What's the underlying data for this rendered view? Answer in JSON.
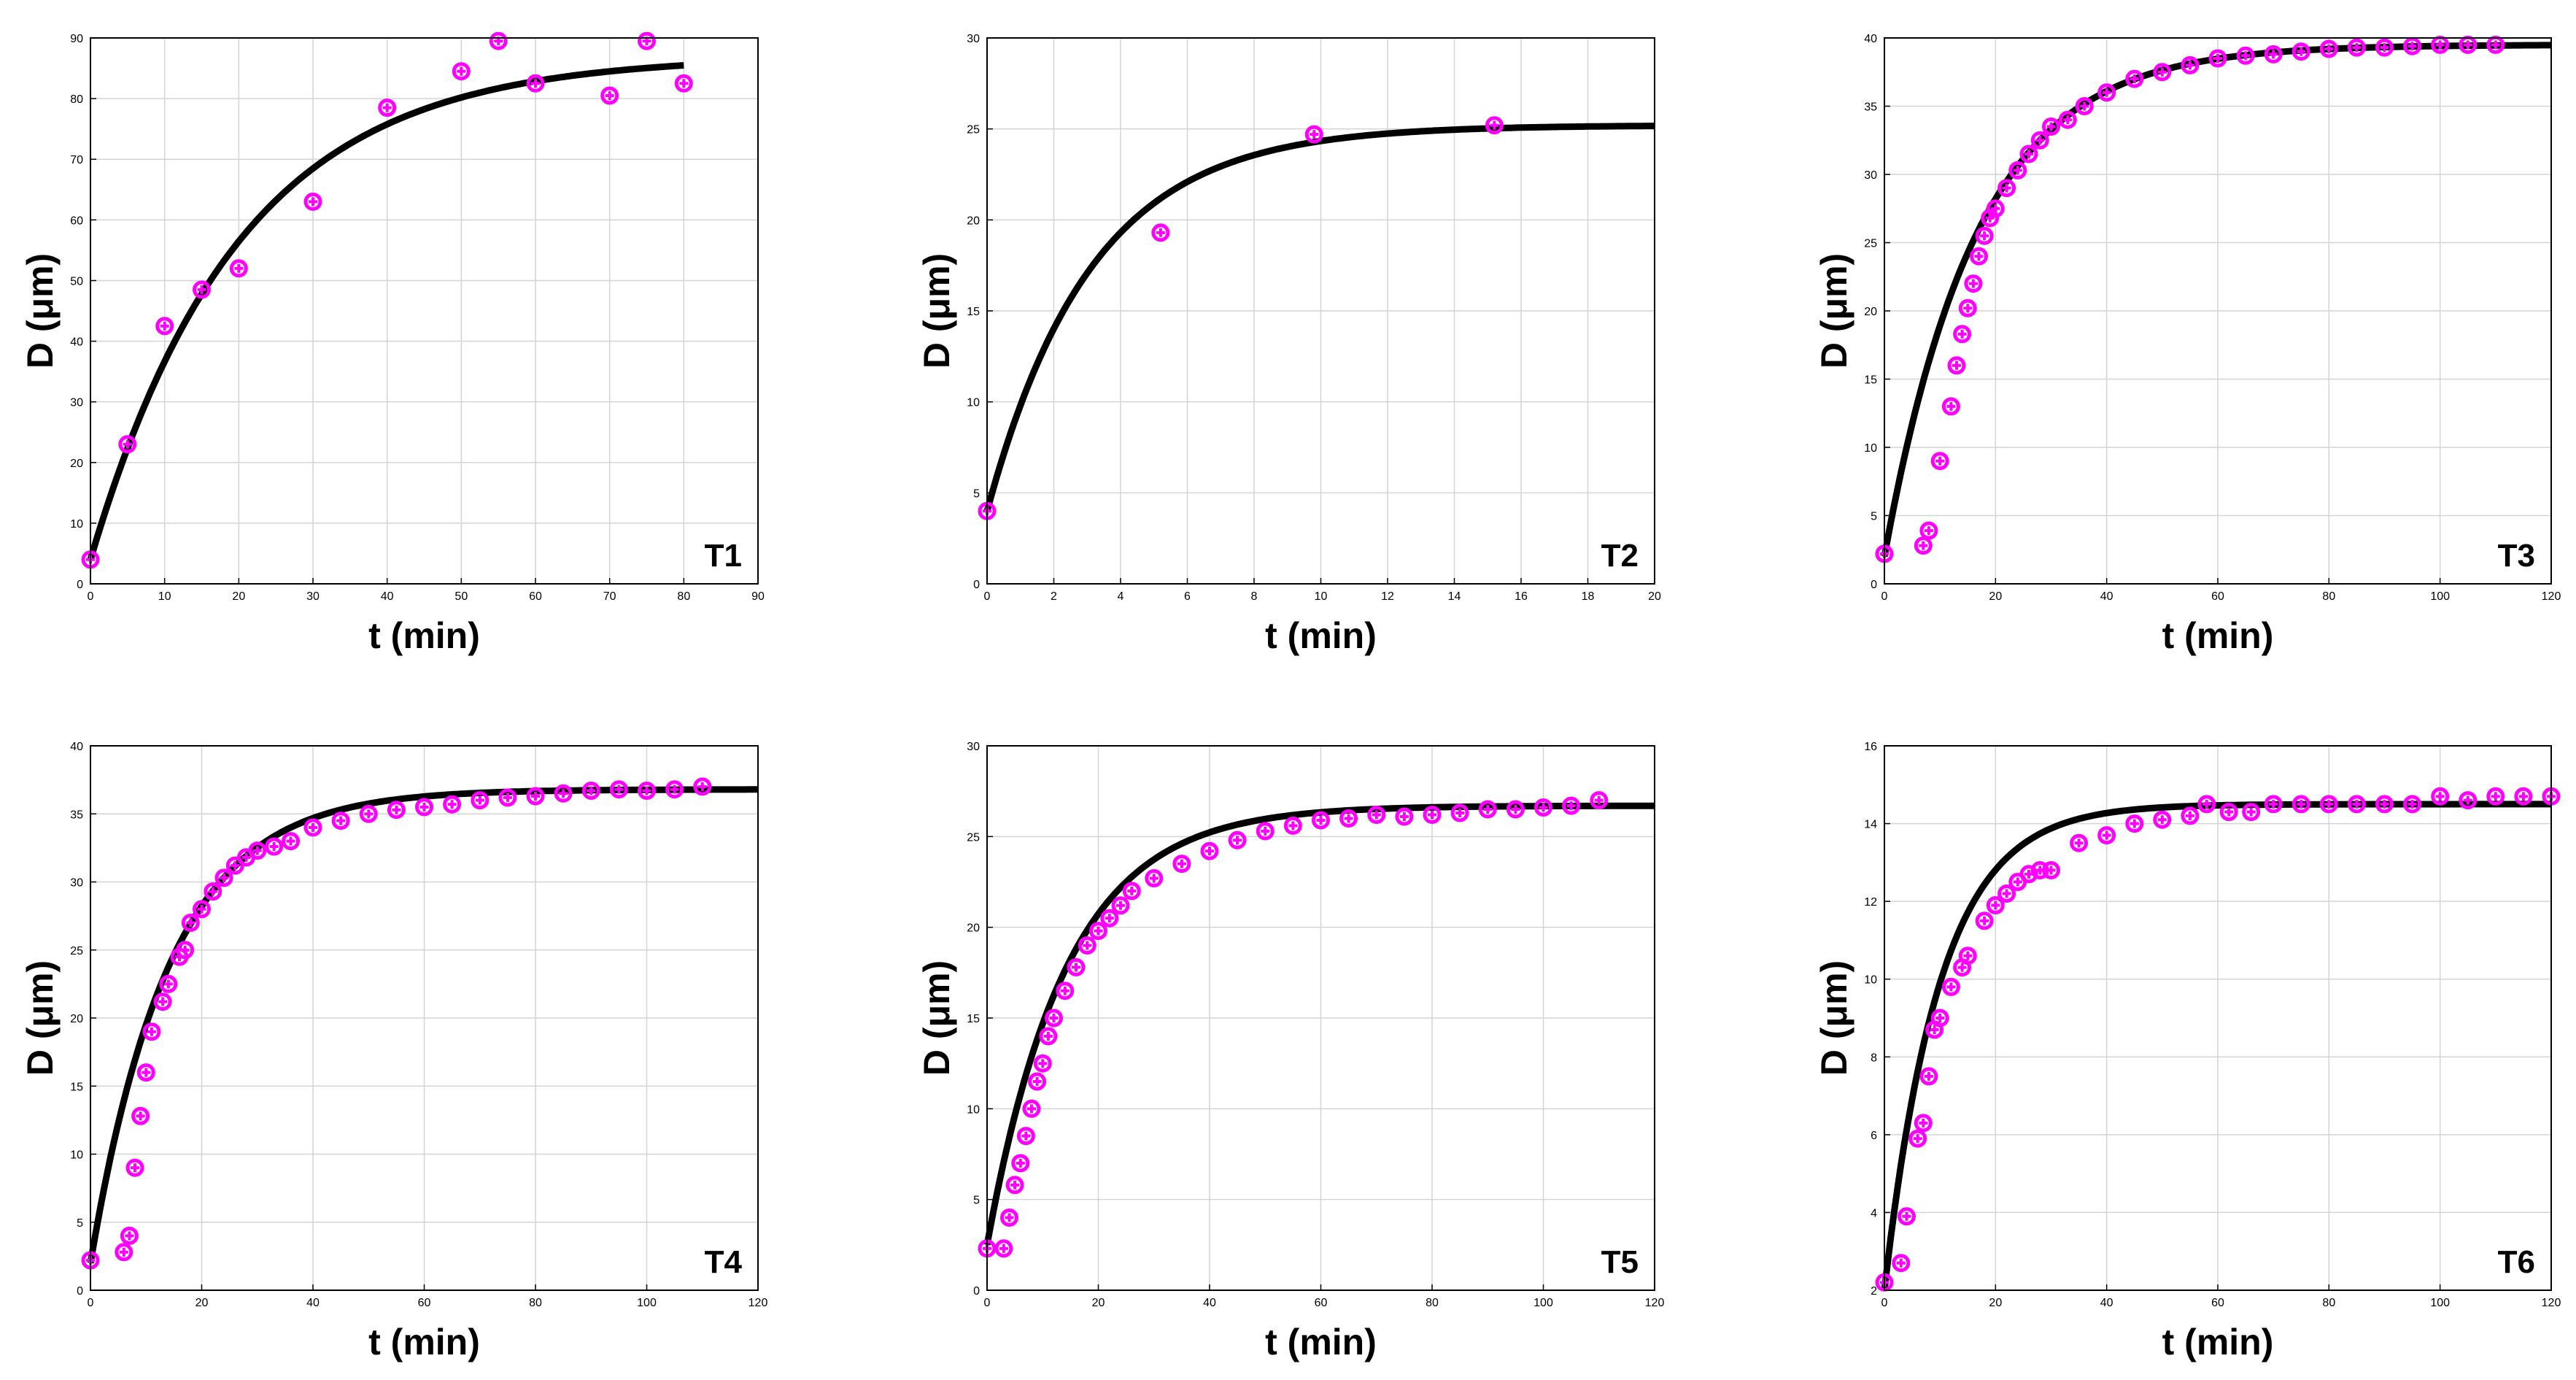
{
  "figure": {
    "marker_color": "#ff00ff",
    "fit_color": "#000000",
    "grid": true
  },
  "chart_data": [
    {
      "type": "scatter",
      "tag": "T1",
      "xlabel": "t (min)",
      "ylabel": "D (μm)",
      "xlim": [
        0,
        90
      ],
      "ylim": [
        0,
        90
      ],
      "xticks": [
        0,
        10,
        20,
        30,
        40,
        50,
        60,
        70,
        80,
        90
      ],
      "yticks": [
        0,
        10,
        20,
        30,
        40,
        50,
        60,
        70,
        80,
        90
      ],
      "fit": {
        "Dmax": 87,
        "D0": 4,
        "k": 0.05,
        "x_end": 80
      },
      "points": [
        [
          0,
          4
        ],
        [
          5,
          23
        ],
        [
          10,
          42.5
        ],
        [
          15,
          48.5
        ],
        [
          20,
          52
        ],
        [
          30,
          63
        ],
        [
          40,
          78.5
        ],
        [
          50,
          84.5
        ],
        [
          55,
          89.5
        ],
        [
          60,
          82.5
        ],
        [
          70,
          80.5
        ],
        [
          75,
          89.5
        ],
        [
          80,
          82.5
        ]
      ]
    },
    {
      "type": "scatter",
      "tag": "T2",
      "xlabel": "t (min)",
      "ylabel": "D (μm)",
      "xlim": [
        0,
        20
      ],
      "ylim": [
        0,
        30
      ],
      "xticks": [
        0,
        2,
        4,
        6,
        8,
        10,
        12,
        14,
        16,
        18,
        20
      ],
      "yticks": [
        0,
        5,
        10,
        15,
        20,
        25,
        30
      ],
      "fit": {
        "Dmax": 25.2,
        "D0": 4,
        "k": 0.32,
        "x_end": 20
      },
      "points": [
        [
          0,
          4
        ],
        [
          5.2,
          19.3
        ],
        [
          9.8,
          24.7
        ],
        [
          15.2,
          25.2
        ]
      ]
    },
    {
      "type": "scatter",
      "tag": "T3",
      "xlabel": "t (min)",
      "ylabel": "D (μm)",
      "xlim": [
        0,
        120
      ],
      "ylim": [
        0,
        40
      ],
      "xticks": [
        0,
        20,
        40,
        60,
        80,
        100,
        120
      ],
      "yticks": [
        0,
        5,
        10,
        15,
        20,
        25,
        30,
        35,
        40
      ],
      "fit": {
        "Dmax": 39.5,
        "D0": 2,
        "k": 0.06,
        "x_end": 120
      },
      "points": [
        [
          0,
          2.2
        ],
        [
          7,
          2.8
        ],
        [
          8,
          3.9
        ],
        [
          10,
          9
        ],
        [
          12,
          13
        ],
        [
          13,
          16
        ],
        [
          14,
          18.3
        ],
        [
          15,
          20.2
        ],
        [
          16,
          22
        ],
        [
          17,
          24
        ],
        [
          18,
          25.5
        ],
        [
          19,
          26.8
        ],
        [
          20,
          27.5
        ],
        [
          22,
          29
        ],
        [
          24,
          30.3
        ],
        [
          26,
          31.5
        ],
        [
          28,
          32.5
        ],
        [
          30,
          33.5
        ],
        [
          33,
          34
        ],
        [
          36,
          35
        ],
        [
          40,
          36
        ],
        [
          45,
          37
        ],
        [
          50,
          37.5
        ],
        [
          55,
          38
        ],
        [
          60,
          38.5
        ],
        [
          65,
          38.7
        ],
        [
          70,
          38.8
        ],
        [
          75,
          39
        ],
        [
          80,
          39.2
        ],
        [
          85,
          39.3
        ],
        [
          90,
          39.3
        ],
        [
          95,
          39.4
        ],
        [
          100,
          39.5
        ],
        [
          105,
          39.5
        ],
        [
          110,
          39.5
        ]
      ]
    },
    {
      "type": "scatter",
      "tag": "T4",
      "xlabel": "t (min)",
      "ylabel": "D (μm)",
      "xlim": [
        0,
        120
      ],
      "ylim": [
        0,
        40
      ],
      "xticks": [
        0,
        20,
        40,
        60,
        80,
        100,
        120
      ],
      "yticks": [
        0,
        5,
        10,
        15,
        20,
        25,
        30,
        35,
        40
      ],
      "fit": {
        "Dmax": 36.8,
        "D0": 2,
        "k": 0.07,
        "x_end": 120
      },
      "points": [
        [
          0,
          2.2
        ],
        [
          6,
          2.8
        ],
        [
          7,
          4
        ],
        [
          8,
          9
        ],
        [
          9,
          12.8
        ],
        [
          10,
          16
        ],
        [
          11,
          19
        ],
        [
          13,
          21.2
        ],
        [
          14,
          22.5
        ],
        [
          16,
          24.5
        ],
        [
          17,
          25
        ],
        [
          18,
          27
        ],
        [
          20,
          28
        ],
        [
          22,
          29.3
        ],
        [
          24,
          30.3
        ],
        [
          26,
          31.2
        ],
        [
          28,
          31.8
        ],
        [
          30,
          32.3
        ],
        [
          33,
          32.6
        ],
        [
          36,
          33
        ],
        [
          40,
          34
        ],
        [
          45,
          34.5
        ],
        [
          50,
          35
        ],
        [
          55,
          35.3
        ],
        [
          60,
          35.5
        ],
        [
          65,
          35.7
        ],
        [
          70,
          36
        ],
        [
          75,
          36.2
        ],
        [
          80,
          36.3
        ],
        [
          85,
          36.5
        ],
        [
          90,
          36.7
        ],
        [
          95,
          36.8
        ],
        [
          100,
          36.7
        ],
        [
          105,
          36.8
        ],
        [
          110,
          37
        ]
      ]
    },
    {
      "type": "scatter",
      "tag": "T5",
      "xlabel": "t (min)",
      "ylabel": "D (μm)",
      "xlim": [
        0,
        120
      ],
      "ylim": [
        0,
        30
      ],
      "xticks": [
        0,
        20,
        40,
        60,
        80,
        100,
        120
      ],
      "yticks": [
        0,
        5,
        10,
        15,
        20,
        25,
        30
      ],
      "fit": {
        "Dmax": 26.7,
        "D0": 2.5,
        "k": 0.07,
        "x_end": 120
      },
      "points": [
        [
          0,
          2.3
        ],
        [
          3,
          2.3
        ],
        [
          4,
          4
        ],
        [
          5,
          5.8
        ],
        [
          6,
          7
        ],
        [
          7,
          8.5
        ],
        [
          8,
          10
        ],
        [
          9,
          11.5
        ],
        [
          10,
          12.5
        ],
        [
          11,
          14
        ],
        [
          12,
          15
        ],
        [
          14,
          16.5
        ],
        [
          16,
          17.8
        ],
        [
          18,
          19
        ],
        [
          20,
          19.8
        ],
        [
          22,
          20.5
        ],
        [
          24,
          21.2
        ],
        [
          26,
          22
        ],
        [
          30,
          22.7
        ],
        [
          35,
          23.5
        ],
        [
          40,
          24.2
        ],
        [
          45,
          24.8
        ],
        [
          50,
          25.3
        ],
        [
          55,
          25.6
        ],
        [
          60,
          25.9
        ],
        [
          65,
          26
        ],
        [
          70,
          26.2
        ],
        [
          75,
          26.1
        ],
        [
          80,
          26.2
        ],
        [
          85,
          26.3
        ],
        [
          90,
          26.5
        ],
        [
          95,
          26.5
        ],
        [
          100,
          26.6
        ],
        [
          105,
          26.7
        ],
        [
          110,
          27
        ]
      ]
    },
    {
      "type": "scatter",
      "tag": "T6",
      "xlabel": "t (min)",
      "ylabel": "D (μm)",
      "xlim": [
        0,
        120
      ],
      "ylim": [
        2,
        16
      ],
      "xticks": [
        0,
        20,
        40,
        60,
        80,
        100,
        120
      ],
      "yticks": [
        2,
        4,
        6,
        8,
        10,
        12,
        14,
        16
      ],
      "fit": {
        "Dmax": 14.5,
        "D0": 2,
        "k": 0.1,
        "x_end": 120
      },
      "points": [
        [
          0,
          2.2
        ],
        [
          3,
          2.7
        ],
        [
          4,
          3.9
        ],
        [
          6,
          5.9
        ],
        [
          7,
          6.3
        ],
        [
          8,
          7.5
        ],
        [
          9,
          8.7
        ],
        [
          10,
          9
        ],
        [
          12,
          9.8
        ],
        [
          14,
          10.3
        ],
        [
          15,
          10.6
        ],
        [
          18,
          11.5
        ],
        [
          20,
          11.9
        ],
        [
          22,
          12.2
        ],
        [
          24,
          12.5
        ],
        [
          26,
          12.7
        ],
        [
          28,
          12.8
        ],
        [
          30,
          12.8
        ],
        [
          35,
          13.5
        ],
        [
          40,
          13.7
        ],
        [
          45,
          14
        ],
        [
          50,
          14.1
        ],
        [
          55,
          14.2
        ],
        [
          58,
          14.5
        ],
        [
          62,
          14.3
        ],
        [
          66,
          14.3
        ],
        [
          70,
          14.5
        ],
        [
          75,
          14.5
        ],
        [
          80,
          14.5
        ],
        [
          85,
          14.5
        ],
        [
          90,
          14.5
        ],
        [
          95,
          14.5
        ],
        [
          100,
          14.7
        ],
        [
          105,
          14.6
        ],
        [
          110,
          14.7
        ],
        [
          115,
          14.7
        ],
        [
          120,
          14.7
        ]
      ]
    }
  ]
}
